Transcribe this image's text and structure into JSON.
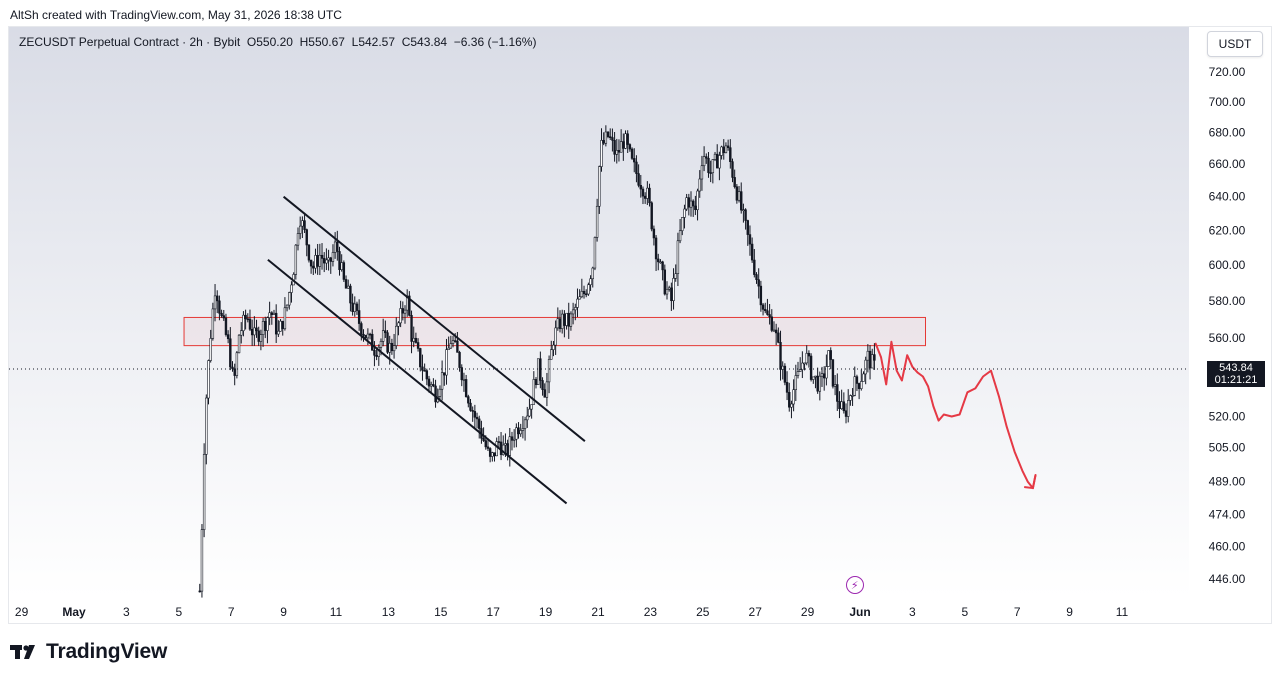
{
  "header": {
    "created_text": "AltSh created with TradingView.com, May 31, 2026 18:38 UTC"
  },
  "legend": {
    "symbol": "ZECUSDT Perpetual Contract · 2h · Bybit",
    "open_label": "O",
    "open": "550.20",
    "high_label": "H",
    "high": "550.67",
    "low_label": "L",
    "low": "542.57",
    "close_label": "C",
    "close": "543.84",
    "change": "−6.36 (−1.16%)"
  },
  "currency_button": "USDT",
  "price_tag": {
    "price": "543.84",
    "countdown": "01:21:21"
  },
  "brand": {
    "name": "TradingView"
  },
  "colors": {
    "candle": "#131722",
    "zone": "#e53935",
    "projection": "#e53945",
    "bg_top": "#d9dce6",
    "bg_bottom": "#ffffff"
  },
  "chart_data": {
    "type": "candlestick",
    "y_axis_labels": [
      "720.00",
      "700.00",
      "680.00",
      "660.00",
      "640.00",
      "620.00",
      "600.00",
      "580.00",
      "560.00",
      "543.84",
      "520.00",
      "505.00",
      "489.00",
      "474.00",
      "460.00",
      "446.00"
    ],
    "y_axis_values": [
      720,
      700,
      680,
      660,
      640,
      620,
      600,
      580,
      560,
      520,
      505,
      489,
      474,
      460,
      446
    ],
    "y_axis_scale": "log",
    "x_axis_labels": [
      "29",
      "May",
      "3",
      "5",
      "7",
      "9",
      "11",
      "13",
      "15",
      "17",
      "19",
      "21",
      "23",
      "25",
      "27",
      "29",
      "Jun",
      "3",
      "5",
      "7",
      "9",
      "11"
    ],
    "x_axis_days": [
      -2,
      0,
      2,
      4,
      6,
      8,
      10,
      12,
      14,
      16,
      18,
      20,
      22,
      24,
      26,
      28,
      30,
      32,
      34,
      36,
      38,
      40
    ],
    "current_price": 543.84,
    "trace": [
      [
        4.8,
        441
      ],
      [
        4.85,
        455
      ],
      [
        5.0,
        520
      ],
      [
        5.2,
        560
      ],
      [
        5.4,
        590
      ],
      [
        5.6,
        572
      ],
      [
        5.9,
        556
      ],
      [
        6.1,
        535
      ],
      [
        6.3,
        562
      ],
      [
        6.6,
        572
      ],
      [
        6.9,
        560
      ],
      [
        7.2,
        566
      ],
      [
        7.5,
        575
      ],
      [
        7.8,
        562
      ],
      [
        8.1,
        575
      ],
      [
        8.4,
        600
      ],
      [
        8.6,
        630
      ],
      [
        8.9,
        612
      ],
      [
        9.1,
        598
      ],
      [
        9.4,
        606
      ],
      [
        9.7,
        598
      ],
      [
        10.0,
        612
      ],
      [
        10.3,
        590
      ],
      [
        10.6,
        578
      ],
      [
        10.9,
        568
      ],
      [
        11.2,
        560
      ],
      [
        11.5,
        554
      ],
      [
        11.8,
        560
      ],
      [
        12.1,
        554
      ],
      [
        12.4,
        568
      ],
      [
        12.7,
        582
      ],
      [
        12.9,
        560
      ],
      [
        13.2,
        548
      ],
      [
        13.5,
        538
      ],
      [
        13.8,
        532
      ],
      [
        14.1,
        542
      ],
      [
        14.4,
        560
      ],
      [
        14.7,
        548
      ],
      [
        15.0,
        532
      ],
      [
        15.3,
        520
      ],
      [
        15.6,
        510
      ],
      [
        15.9,
        498
      ],
      [
        16.2,
        508
      ],
      [
        16.5,
        502
      ],
      [
        16.8,
        512
      ],
      [
        17.1,
        518
      ],
      [
        17.4,
        525
      ],
      [
        17.7,
        545
      ],
      [
        18.0,
        532
      ],
      [
        18.3,
        560
      ],
      [
        18.6,
        570
      ],
      [
        18.9,
        568
      ],
      [
        19.2,
        578
      ],
      [
        19.5,
        585
      ],
      [
        19.8,
        600
      ],
      [
        20.1,
        670
      ],
      [
        20.4,
        678
      ],
      [
        20.7,
        665
      ],
      [
        21.0,
        676
      ],
      [
        21.3,
        660
      ],
      [
        21.6,
        650
      ],
      [
        21.9,
        640
      ],
      [
        22.2,
        610
      ],
      [
        22.5,
        590
      ],
      [
        22.8,
        580
      ],
      [
        23.1,
        615
      ],
      [
        23.4,
        640
      ],
      [
        23.7,
        630
      ],
      [
        24.0,
        668
      ],
      [
        24.3,
        655
      ],
      [
        24.6,
        665
      ],
      [
        24.9,
        672
      ],
      [
        25.2,
        650
      ],
      [
        25.5,
        630
      ],
      [
        25.8,
        610
      ],
      [
        26.1,
        590
      ],
      [
        26.4,
        572
      ],
      [
        26.7,
        568
      ],
      [
        27.0,
        545
      ],
      [
        27.3,
        528
      ],
      [
        27.6,
        538
      ],
      [
        27.9,
        552
      ],
      [
        28.2,
        540
      ],
      [
        28.5,
        535
      ],
      [
        28.8,
        550
      ],
      [
        29.1,
        530
      ],
      [
        29.4,
        520
      ],
      [
        29.7,
        535
      ],
      [
        30.0,
        538
      ],
      [
        30.3,
        550
      ],
      [
        30.6,
        543.84
      ]
    ],
    "descending_channel": {
      "upper_line": [
        [
          8.0,
          640
        ],
        [
          19.5,
          508
        ]
      ],
      "lower_line": [
        [
          7.4,
          603
        ],
        [
          18.8,
          479
        ]
      ]
    },
    "resistance_zone": {
      "x_start": 4.2,
      "x_end": 32.5,
      "y_top": 571,
      "y_bottom": 556
    },
    "projection_path": [
      [
        30.6,
        557
      ],
      [
        30.8,
        550
      ],
      [
        31.0,
        536
      ],
      [
        31.2,
        558
      ],
      [
        31.4,
        543
      ],
      [
        31.6,
        538
      ],
      [
        31.8,
        551
      ],
      [
        32.0,
        545
      ],
      [
        32.2,
        542
      ],
      [
        32.4,
        540
      ],
      [
        32.6,
        535
      ],
      [
        32.8,
        525
      ],
      [
        33.0,
        518
      ],
      [
        33.2,
        521
      ],
      [
        33.5,
        520
      ],
      [
        33.8,
        521
      ],
      [
        34.1,
        532
      ],
      [
        34.4,
        534
      ],
      [
        34.7,
        540
      ],
      [
        35.0,
        543
      ],
      [
        35.3,
        530
      ],
      [
        35.6,
        515
      ],
      [
        35.9,
        503
      ],
      [
        36.2,
        494
      ],
      [
        36.4,
        489
      ],
      [
        36.6,
        486
      ],
      [
        36.7,
        492
      ]
    ]
  }
}
